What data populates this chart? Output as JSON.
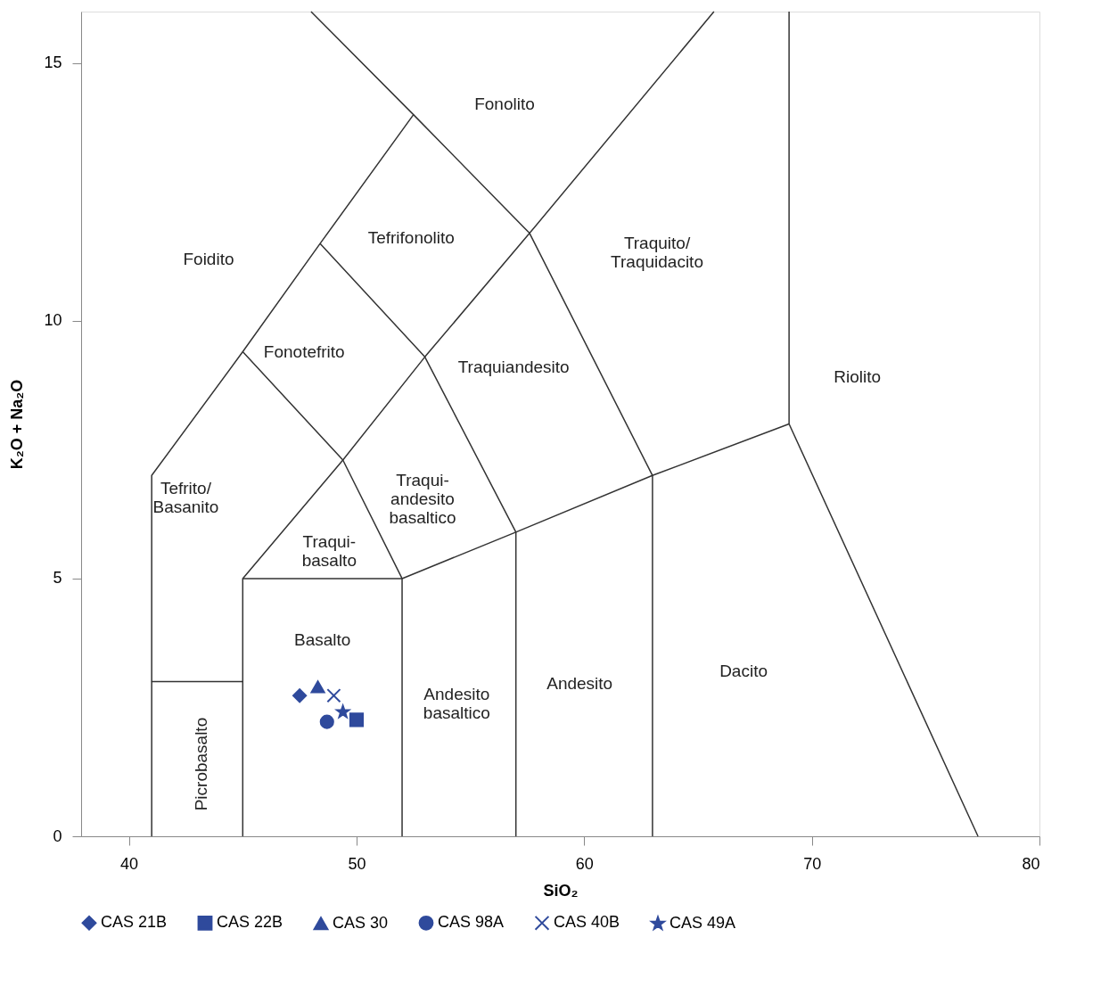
{
  "chart_data": {
    "type": "scatter",
    "xlabel": "SiO₂",
    "ylabel": "K₂O + Na₂O",
    "xlim": [
      37.9,
      80
    ],
    "ylim": [
      0,
      16
    ],
    "xticks": [
      40,
      50,
      60,
      70,
      80
    ],
    "yticks": [
      0,
      5,
      10,
      15
    ],
    "grid": false,
    "legend": "bottom",
    "series": [
      {
        "name": "CAS 21B",
        "marker": "diamond",
        "color": "#2f4a9c",
        "x": [
          47.5
        ],
        "values": [
          2.73
        ]
      },
      {
        "name": "CAS 22B",
        "marker": "square",
        "color": "#2f4a9c",
        "x": [
          50.0
        ],
        "values": [
          2.26
        ]
      },
      {
        "name": "CAS 30",
        "marker": "triangle",
        "color": "#2f4a9c",
        "x": [
          48.3
        ],
        "values": [
          2.9
        ]
      },
      {
        "name": "CAS 98A",
        "marker": "circle",
        "color": "#2f4a9c",
        "x": [
          48.7
        ],
        "values": [
          2.22
        ]
      },
      {
        "name": "CAS 40B",
        "marker": "cross",
        "color": "#2f4a9c",
        "x": [
          49.0
        ],
        "values": [
          2.73
        ]
      },
      {
        "name": "CAS 49A",
        "marker": "star",
        "color": "#2f4a9c",
        "x": [
          49.4
        ],
        "values": [
          2.41
        ]
      },
      {
        "type": "line",
        "color": "#333333",
        "x": [
          41,
          41,
          45
        ],
        "values": [
          0,
          3,
          3
        ]
      },
      {
        "type": "line",
        "color": "#333333",
        "x": [
          41,
          41,
          45,
          48.4,
          52.5,
          48.0
        ],
        "values": [
          3,
          7,
          9.4,
          11.5,
          14,
          16
        ]
      },
      {
        "type": "line",
        "color": "#333333",
        "x": [
          45,
          45,
          52,
          52
        ],
        "values": [
          0,
          5,
          5,
          0
        ]
      },
      {
        "type": "line",
        "color": "#333333",
        "x": [
          45,
          49.4,
          53,
          57.6,
          65.7
        ],
        "values": [
          5,
          7.3,
          9.3,
          11.7,
          16
        ]
      },
      {
        "type": "line",
        "color": "#333333",
        "x": [
          45,
          49.4,
          52
        ],
        "values": [
          9.4,
          7.3,
          5
        ]
      },
      {
        "type": "line",
        "color": "#333333",
        "x": [
          48.4,
          53,
          57,
          57
        ],
        "values": [
          11.5,
          9.3,
          5.9,
          0
        ]
      },
      {
        "type": "line",
        "color": "#333333",
        "x": [
          52.5,
          57.6,
          63,
          63
        ],
        "values": [
          14,
          11.7,
          7,
          0
        ]
      },
      {
        "type": "line",
        "color": "#333333",
        "x": [
          52,
          57,
          63,
          69,
          77.3
        ],
        "values": [
          5,
          5.9,
          7,
          8,
          0
        ]
      },
      {
        "type": "line",
        "color": "#333333",
        "x": [
          69,
          69
        ],
        "values": [
          8,
          16
        ]
      }
    ],
    "annotations": [
      "Fonolito",
      "Foidito",
      "Tefrifonolito",
      "Fonotefrito",
      "Traquiandesito",
      "Traquito/\nTraquidacito",
      "Riolito",
      "Tefrito/\nBasanito",
      "Traqui-\nbasalto",
      "Traqui-\nandesito\nbasaltico",
      "Basalto",
      "Andesito\nbasaltico",
      "Andesito",
      "Dacito",
      "Picrobasalto"
    ]
  }
}
